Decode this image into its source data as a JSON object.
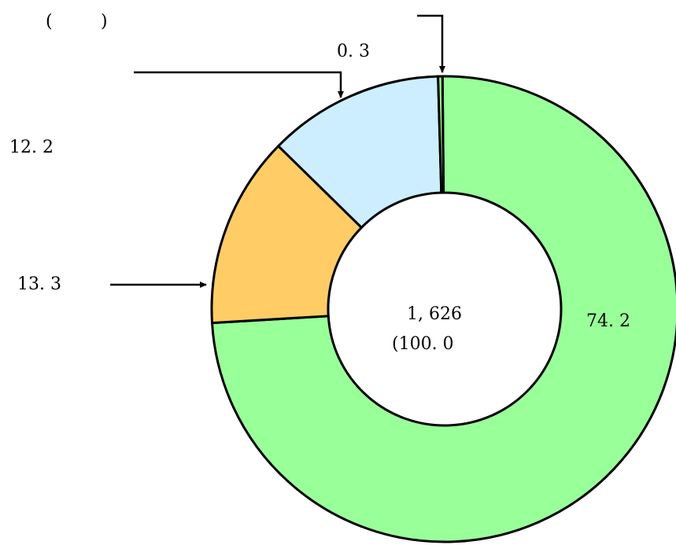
{
  "header": {
    "open_paren": "(",
    "close_paren": ")"
  },
  "chart_data": {
    "type": "pie",
    "style": "donut",
    "categories": [
      "",
      "",
      "",
      ""
    ],
    "values": [
      74.2,
      13.3,
      12.2,
      0.3
    ],
    "value_labels": [
      "74. 2",
      "13. 3",
      "12. 2",
      "0. 3"
    ],
    "colors": [
      "#99ff99",
      "#ffcc66",
      "#cceeff",
      "#99ff99"
    ],
    "center": {
      "total": "1, 626",
      "percent": "(100. 0"
    },
    "legend": "none"
  }
}
